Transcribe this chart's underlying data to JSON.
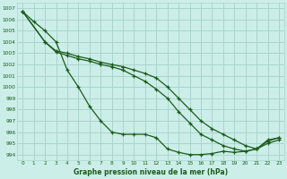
{
  "title": "Graphe pression niveau de la mer (hPa)",
  "background_color": "#cceee8",
  "grid_color": "#aad4ce",
  "line_color": "#1a5c1a",
  "xlim": [
    -0.5,
    23.5
  ],
  "ylim": [
    993.5,
    1007.5
  ],
  "xticks": [
    0,
    1,
    2,
    3,
    4,
    5,
    6,
    7,
    8,
    9,
    10,
    11,
    12,
    13,
    14,
    15,
    16,
    17,
    18,
    19,
    20,
    21,
    22,
    23
  ],
  "yticks": [
    994,
    995,
    996,
    997,
    998,
    999,
    1000,
    1001,
    1002,
    1003,
    1004,
    1005,
    1006,
    1007
  ],
  "series": [
    {
      "x": [
        0,
        1,
        2,
        3,
        4,
        5,
        6,
        7,
        8,
        9,
        10,
        11,
        12,
        13,
        14,
        15,
        16,
        17,
        18,
        19,
        20,
        21,
        22,
        23
      ],
      "y": [
        1006.7,
        1005.8,
        1005.0,
        1004.0,
        1001.5,
        1000.0,
        998.3,
        997.0,
        996.0,
        995.8,
        995.8,
        995.8,
        995.5,
        994.5,
        994.2,
        994.0,
        994.0,
        994.1,
        994.3,
        994.2,
        994.3,
        994.5,
        995.0,
        995.3
      ]
    },
    {
      "x": [
        0,
        2,
        3,
        4,
        5,
        6,
        7,
        8,
        9,
        10,
        11,
        12,
        13,
        14,
        15,
        16,
        17,
        18,
        19,
        20,
        21,
        22,
        23
      ],
      "y": [
        1006.7,
        1004.0,
        1003.1,
        1002.8,
        1002.5,
        1002.3,
        1002.0,
        1001.8,
        1001.5,
        1001.0,
        1000.5,
        999.8,
        999.0,
        997.8,
        996.8,
        995.8,
        995.3,
        994.8,
        994.5,
        994.3,
        994.5,
        995.2,
        995.5
      ]
    },
    {
      "x": [
        0,
        2,
        3,
        4,
        5,
        6,
        7,
        8,
        9,
        10,
        11,
        12,
        13,
        14,
        15,
        16,
        17,
        18,
        19,
        20,
        21,
        22,
        23
      ],
      "y": [
        1006.7,
        1004.0,
        1003.2,
        1003.0,
        1002.7,
        1002.5,
        1002.2,
        1002.0,
        1001.8,
        1001.5,
        1001.2,
        1000.8,
        1000.0,
        999.0,
        998.0,
        997.0,
        996.3,
        995.8,
        995.3,
        994.8,
        994.5,
        995.3,
        995.5
      ]
    }
  ]
}
